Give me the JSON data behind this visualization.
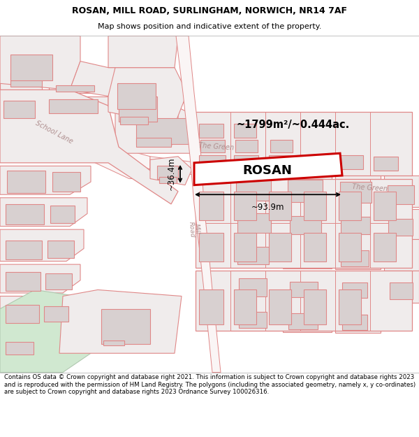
{
  "title": "ROSAN, MILL ROAD, SURLINGHAM, NORWICH, NR14 7AF",
  "subtitle": "Map shows position and indicative extent of the property.",
  "footer": "Contains OS data © Crown copyright and database right 2021. This information is subject to Crown copyright and database rights 2023 and is reproduced with the permission of HM Land Registry. The polygons (including the associated geometry, namely x, y co-ordinates) are subject to Crown copyright and database rights 2023 Ordnance Survey 100026316.",
  "area_label": "~1799m²/~0.444ac.",
  "property_label": "ROSAN",
  "width_label": "~93.9m",
  "height_label": "~36.4m",
  "map_bg": "#ffffff",
  "plot_fill": "#f0ecec",
  "plot_edge": "#e08888",
  "building_fill": "#d8d0d0",
  "building_edge": "#e08888",
  "road_fill": "#f8f0f0",
  "road_edge": "#e08888",
  "highlight_fill": "#ffffff",
  "highlight_edge": "#cc0000",
  "green_fill": "#d0e8d0",
  "green_edge": "#b0c8b0",
  "road_label_color": "#b09090",
  "text_color": "#000000",
  "figsize": [
    6.0,
    6.25
  ],
  "dpi": 100,
  "title_fontsize": 9,
  "subtitle_fontsize": 8,
  "footer_fontsize": 6.2
}
